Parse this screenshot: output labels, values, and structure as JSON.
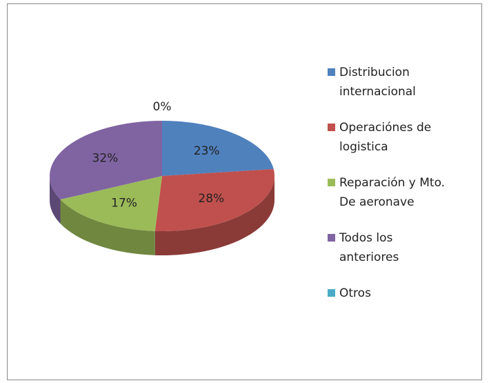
{
  "chart_data": {
    "type": "pie3d",
    "categories": [
      "Distribucion internacional",
      "Operaciónes de logistica",
      "Reparación y Mto. De aeronave",
      "Todos los anteriores",
      "Otros"
    ],
    "values": [
      23,
      28,
      17,
      32,
      0
    ],
    "value_labels": [
      "23%",
      "28%",
      "17%",
      "32%",
      "0%"
    ],
    "colors": [
      "#4f81bd",
      "#c0504d",
      "#9bbb59",
      "#8064a2",
      "#4bacc6"
    ],
    "legend": "right"
  }
}
